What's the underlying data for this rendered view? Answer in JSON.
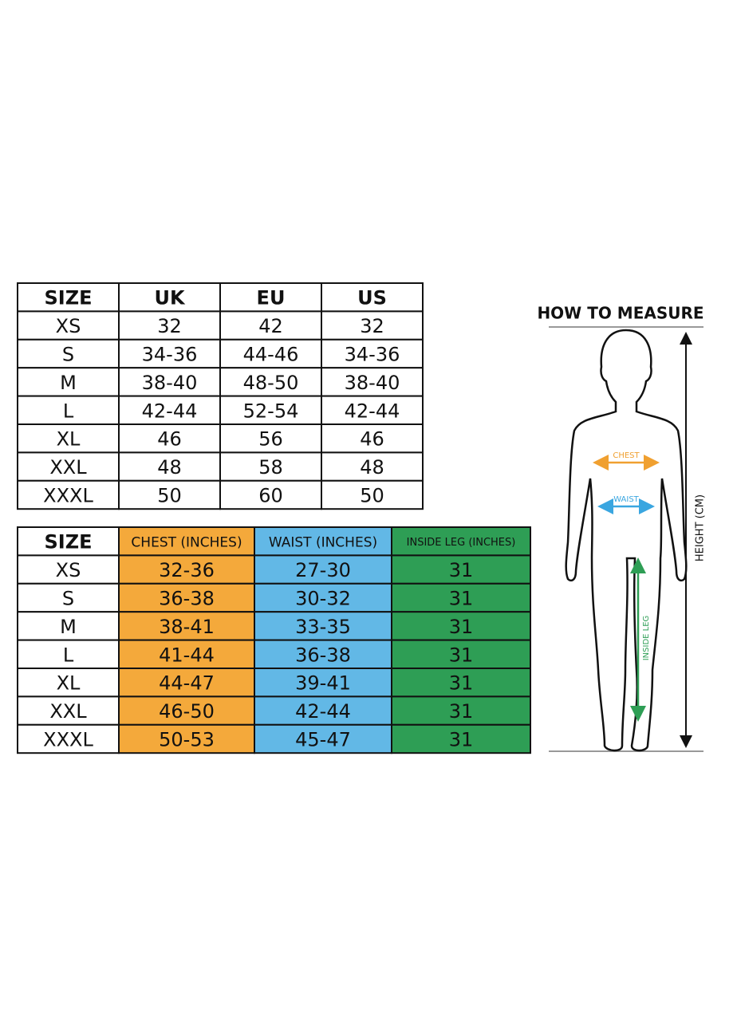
{
  "size_table": {
    "header": [
      "SIZE",
      "UK",
      "EU",
      "US"
    ],
    "rows": [
      [
        "XS",
        "32",
        "42",
        "32"
      ],
      [
        "S",
        "34-36",
        "44-46",
        "34-36"
      ],
      [
        "M",
        "38-40",
        "48-50",
        "38-40"
      ],
      [
        "L",
        "42-44",
        "52-54",
        "42-44"
      ],
      [
        "XL",
        "46",
        "56",
        "46"
      ],
      [
        "XXL",
        "48",
        "58",
        "48"
      ],
      [
        "XXXL",
        "50",
        "60",
        "50"
      ]
    ]
  },
  "measure_table": {
    "header": [
      "SIZE",
      "CHEST (INCHES)",
      "WAIST (INCHES)",
      "INSIDE LEG (INCHES)"
    ],
    "rows": [
      [
        "XS",
        "32-36",
        "27-30",
        "31"
      ],
      [
        "S",
        "36-38",
        "30-32",
        "31"
      ],
      [
        "M",
        "38-41",
        "33-35",
        "31"
      ],
      [
        "L",
        "41-44",
        "36-38",
        "31"
      ],
      [
        "XL",
        "44-47",
        "39-41",
        "31"
      ],
      [
        "XXL",
        "46-50",
        "42-44",
        "31"
      ],
      [
        "XXXL",
        "50-53",
        "45-47",
        "31"
      ]
    ]
  },
  "diagram": {
    "title": "HOW TO MEASURE",
    "chest": "CHEST",
    "waist": "WAIST",
    "inside_leg": "INSIDE LEG",
    "height": "HEIGHT (CM)"
  }
}
